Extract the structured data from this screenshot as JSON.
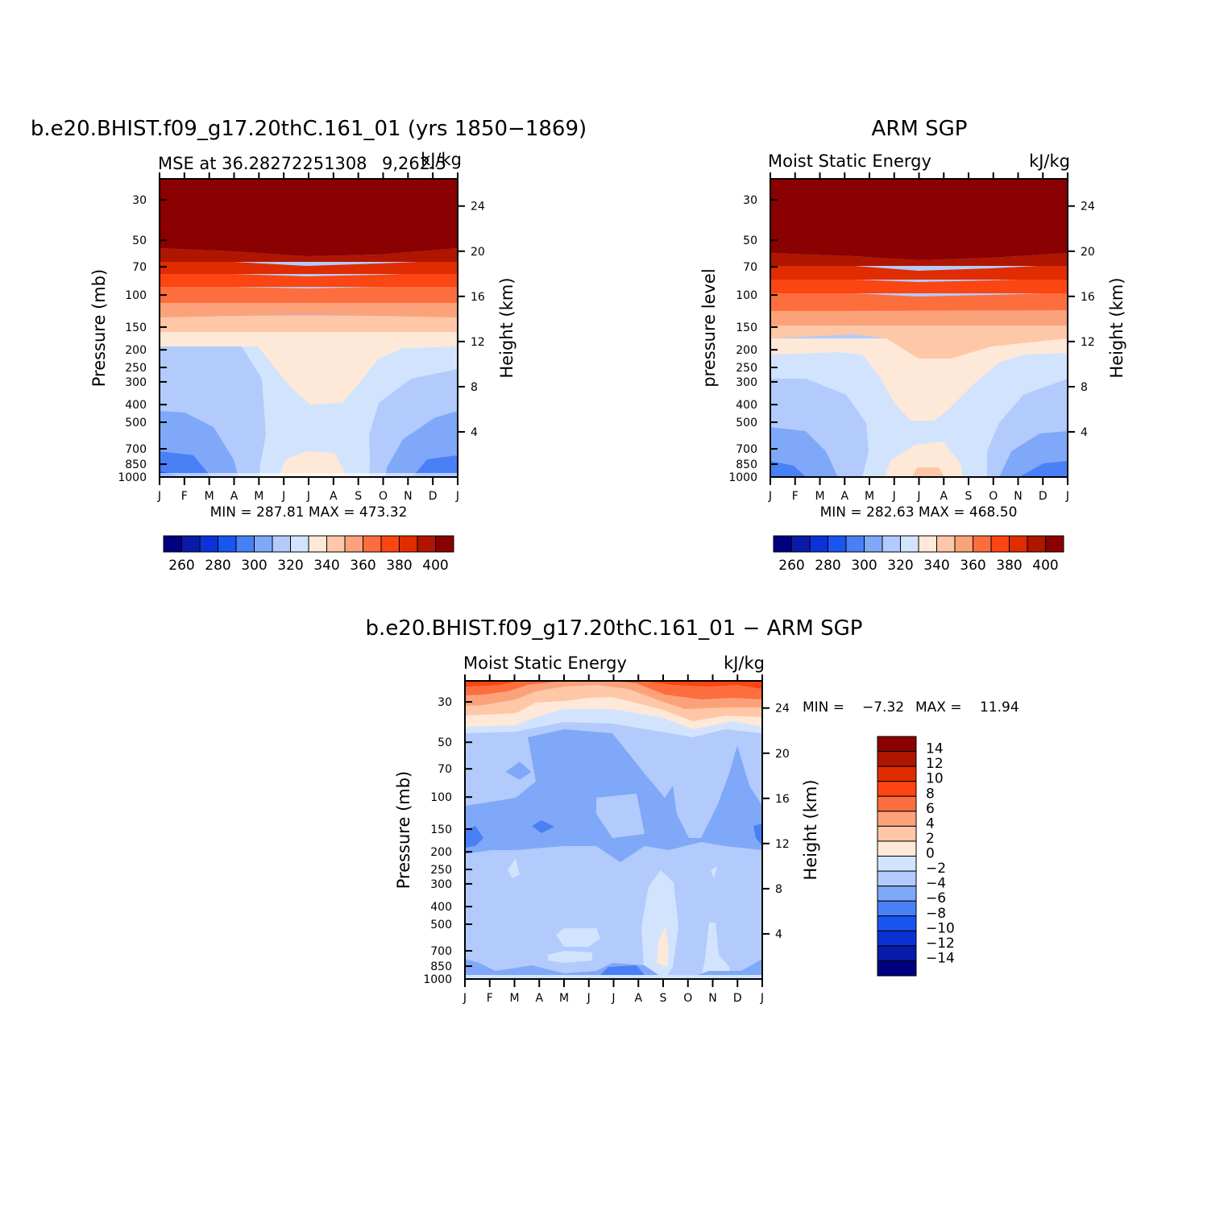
{
  "months": [
    "J",
    "F",
    "M",
    "A",
    "M",
    "J",
    "J",
    "A",
    "S",
    "O",
    "N",
    "D",
    "J"
  ],
  "colorbar_colors": {
    "abs": [
      "#00007f",
      "#0a1aa8",
      "#0a32d4",
      "#1a55f0",
      "#4a80f5",
      "#80a8f8",
      "#b2cbfc",
      "#d2e4fd",
      "#fee8d8",
      "#fdc7a8",
      "#fca27b",
      "#fc6e3e",
      "#fb4512",
      "#e02c00",
      "#b01500",
      "#8b0000"
    ],
    "diff": [
      "#00007f",
      "#0a1aa8",
      "#0a32d4",
      "#1a55f0",
      "#4a80f5",
      "#80a8f8",
      "#b2cbfc",
      "#d2e4fd",
      "#fee8d8",
      "#fdc7a8",
      "#fca27b",
      "#fc6e3e",
      "#fb4512",
      "#e02c00",
      "#b01500",
      "#8b0000"
    ]
  },
  "chart_data": [
    {
      "type": "heatmap",
      "title": "b.e20.BHIST.f09_g17.20thC.161_01 (yrs 1850−1869)",
      "subtitle_left": "MSE at 36.28272251308 9,262.5",
      "subtitle_left_exact": "MSE at 36.28272251308",
      "subtitle_overlap": "9,262.5",
      "subtitle_right": "kJ/kg",
      "ylabel": "Pressure (mb)",
      "ylabel_right": "Height (km)",
      "yticks": [
        "30",
        "50",
        "70",
        "100",
        "150",
        "200",
        "250",
        "300",
        "400",
        "500",
        "700",
        "850",
        "1000"
      ],
      "yticks_right": [
        "24",
        "20",
        "16",
        "12",
        "8",
        "4"
      ],
      "stats": "MIN = 287.81 MAX = 473.32",
      "colorbar_labels": [
        "260",
        "280",
        "300",
        "320",
        "340",
        "360",
        "380",
        "400"
      ],
      "data_summary": {
        "top_levels_30_50mb": 400,
        "mid_tropo_summer": 335,
        "mid_tropo_winter": 315,
        "surface_winter": 295,
        "surface_summer": 340
      }
    },
    {
      "type": "heatmap",
      "title": "ARM SGP",
      "subtitle_left": "Moist Static Energy",
      "subtitle_right": "kJ/kg",
      "ylabel": "pressure level",
      "ylabel_right": "Height (km)",
      "yticks": [
        "30",
        "50",
        "70",
        "100",
        "150",
        "200",
        "250",
        "300",
        "400",
        "500",
        "700",
        "850",
        "1000"
      ],
      "yticks_right": [
        "24",
        "20",
        "16",
        "12",
        "8",
        "4"
      ],
      "stats": "MIN = 282.63 MAX = 468.50",
      "colorbar_labels": [
        "260",
        "280",
        "300",
        "320",
        "340",
        "360",
        "380",
        "400"
      ]
    },
    {
      "type": "heatmap",
      "title": "b.e20.BHIST.f09_g17.20thC.161_01 − ARM SGP",
      "subtitle_left": "Moist Static Energy",
      "subtitle_right": "kJ/kg",
      "ylabel": "Pressure (mb)",
      "ylabel_right": "Height (km)",
      "yticks": [
        "30",
        "50",
        "70",
        "100",
        "150",
        "200",
        "250",
        "300",
        "400",
        "500",
        "700",
        "850",
        "1000"
      ],
      "yticks_right": [
        "24",
        "20",
        "16",
        "12",
        "8",
        "4"
      ],
      "stats_min_label": "MIN =",
      "stats_min": "−7.32",
      "stats_max_label": "MAX =",
      "stats_max": "11.94",
      "colorbar_labels": [
        "14",
        "12",
        "10",
        "8",
        "6",
        "4",
        "2",
        "0",
        "−2",
        "−4",
        "−6",
        "−8",
        "−10",
        "−12",
        "−14"
      ]
    }
  ]
}
